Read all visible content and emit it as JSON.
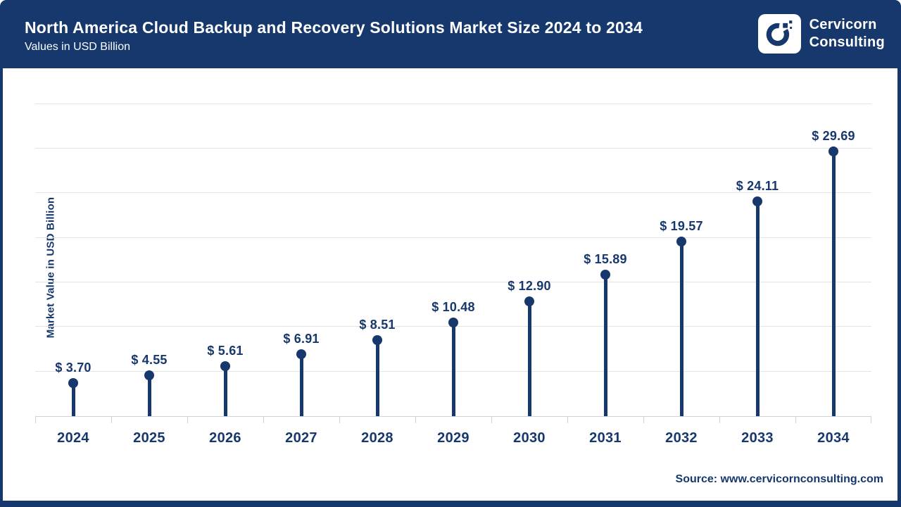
{
  "header": {
    "title": "North America Cloud Backup and Recovery Solutions Market Size 2024 to 2034",
    "subtitle": "Values in USD Billion",
    "brand": {
      "line1": "Cervicorn",
      "line2": "Consulting"
    }
  },
  "chart_data": {
    "type": "bar",
    "style": "lollipop",
    "title": "North America Cloud Backup and Recovery Solutions Market Size 2024 to 2034",
    "categories": [
      "2024",
      "2025",
      "2026",
      "2027",
      "2028",
      "2029",
      "2030",
      "2031",
      "2032",
      "2033",
      "2034"
    ],
    "values": [
      3.7,
      4.55,
      5.61,
      6.91,
      8.51,
      10.48,
      12.9,
      15.89,
      19.57,
      24.11,
      29.69
    ],
    "value_prefix": "$ ",
    "xlabel": "",
    "ylabel": "Market Value in USD Billion",
    "ylim": [
      0,
      35
    ],
    "gridline_step": 5,
    "grid": "horizontal",
    "legend": "none"
  },
  "footer": {
    "source": "Source: www.cervicornconsulting.com"
  },
  "colors": {
    "navy": "#16386D",
    "gridline": "#E4E4E6",
    "axis": "#D2D2D2",
    "background": "#FFFFFF"
  }
}
